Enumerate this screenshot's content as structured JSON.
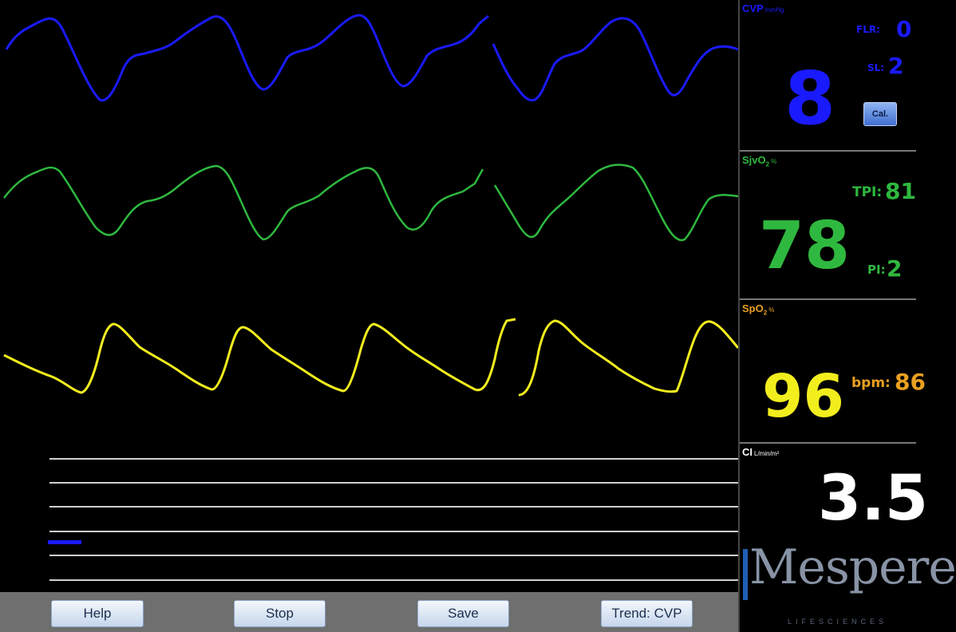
{
  "waveforms": [
    {
      "name": "CVP waveform",
      "color": "#1a1aff"
    },
    {
      "name": "SjvO2 waveform",
      "color": "#2fb83f"
    },
    {
      "name": "SpO2 waveform",
      "color": "#f2ee1e"
    }
  ],
  "trend": {
    "bar_color": "#1a1aff",
    "gridline_color": "#cfcfcf",
    "ticks": [
      "",
      "",
      "",
      "",
      "",
      "",
      ""
    ]
  },
  "buttons": {
    "help": "Help",
    "stop": "Stop",
    "save": "Save",
    "trend": "Trend: CVP"
  },
  "panel": {
    "cvp": {
      "label": "CVP",
      "unit": "mmHg",
      "value": "8",
      "flr_label": "FLR:",
      "flr_value": "0",
      "sl_label": "SL:",
      "sl_value": "2",
      "cal_label": "Cal.",
      "color": "#1a1aff"
    },
    "sjvo2": {
      "label": "SjvO",
      "sub": "2",
      "unit": "%",
      "value": "78",
      "tpi_label": "TPI:",
      "tpi_value": "81",
      "pi_label": "PI:",
      "pi_value": "2",
      "color": "#2fb83f"
    },
    "spo2": {
      "label": "SpO",
      "sub": "2",
      "unit": "%",
      "value": "96",
      "bpm_label": "bpm:",
      "bpm_value": "86",
      "color": "#f2ee1e",
      "label_color": "#e8a020"
    },
    "ci": {
      "label": "CI",
      "unit": "L/min/m²",
      "value": "3.5",
      "color": "#ffffff"
    }
  },
  "logo": {
    "word": "Mespere",
    "sub": "LIFESCIENCES",
    "bar_color": "#1e5fb4"
  }
}
